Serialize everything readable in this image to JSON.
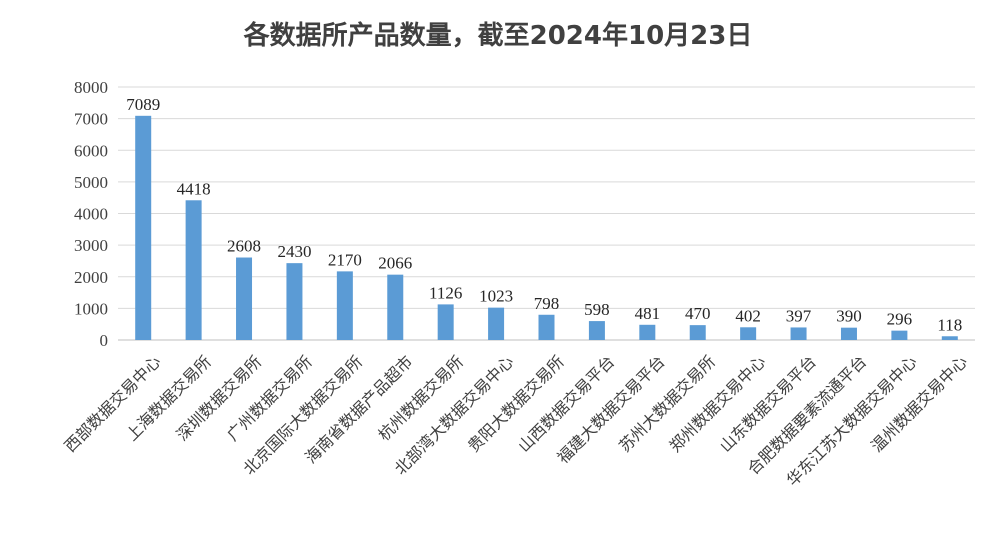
{
  "chart_data": {
    "type": "bar",
    "title": "各数据所产品数量，截至2024年10月23日",
    "xlabel": "",
    "ylabel": "",
    "ylim": [
      0,
      8000
    ],
    "yticks": [
      0,
      1000,
      2000,
      3000,
      4000,
      5000,
      6000,
      7000,
      8000
    ],
    "grid": true,
    "legend": "none",
    "bar_color": "#5b9bd5",
    "categories": [
      "西部数据交易中心",
      "上海数据交易所",
      "深圳数据交易所",
      "广州数据交易所",
      "北京国际大数据交易所",
      "海南省数据产品超市",
      "杭州数据交易所",
      "北部湾大数据交易中心",
      "贵阳大数据交易所",
      "山西数据交易平台",
      "福建大数据交易平台",
      "苏州大数据交易所",
      "郑州数据交易中心",
      "山东数据交易平台",
      "合肥数据要素流通平台",
      "华东江苏大数据交易中心",
      "温州数据交易中心"
    ],
    "values": [
      7089,
      4418,
      2608,
      2430,
      2170,
      2066,
      1126,
      1023,
      798,
      598,
      481,
      470,
      402,
      397,
      390,
      296,
      118
    ]
  }
}
